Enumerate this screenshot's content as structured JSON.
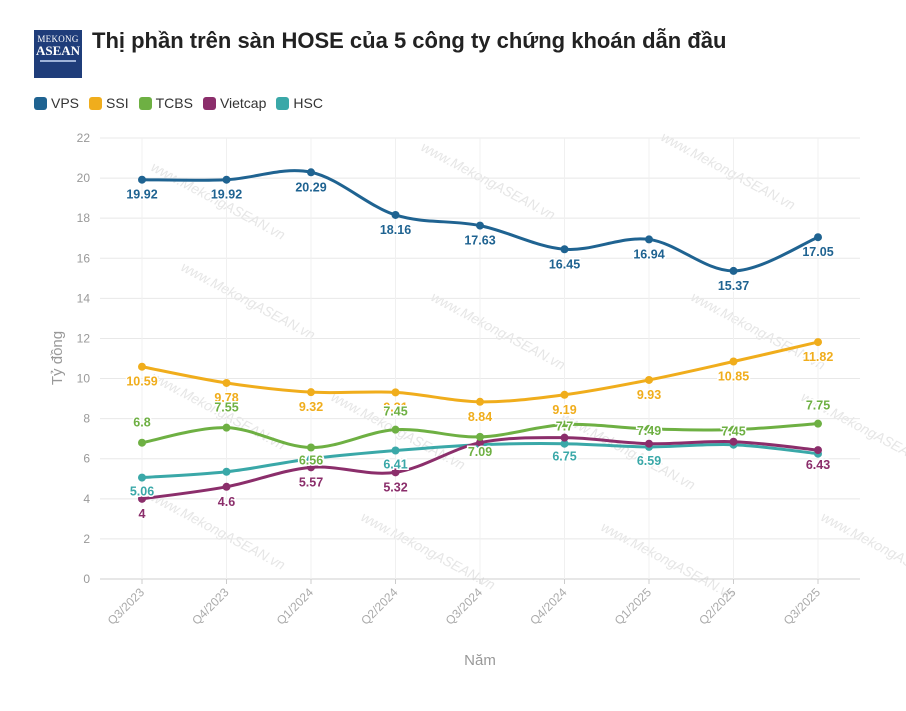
{
  "logo": {
    "line1": "MEKONG",
    "line2": "ASEAN"
  },
  "chart_data": {
    "type": "line",
    "title": "Thị phần trên sàn HOSE của 5 công ty chứng khoán dẫn đầu",
    "xlabel": "Năm",
    "ylabel": "Tỷ đồng",
    "ylim": [
      0,
      22
    ],
    "yticks": [
      0,
      2,
      4,
      6,
      8,
      10,
      12,
      14,
      16,
      18,
      20,
      22
    ],
    "categories": [
      "Q3/2023",
      "Q4/2023",
      "Q1/2024",
      "Q2/2024",
      "Q3/2024",
      "Q4/2024",
      "Q1/2025",
      "Q2/2025",
      "Q3/2025"
    ],
    "grid": true,
    "legend_position": "top-left",
    "watermark": "www.MekongASEAN.vn",
    "series": [
      {
        "name": "VPS",
        "color": "#1f6391",
        "values": [
          19.92,
          19.92,
          20.29,
          18.16,
          17.63,
          16.45,
          16.94,
          15.37,
          17.05
        ]
      },
      {
        "name": "SSI",
        "color": "#f0ad1c",
        "values": [
          10.59,
          9.78,
          9.32,
          9.31,
          8.84,
          9.19,
          9.93,
          10.85,
          11.82
        ]
      },
      {
        "name": "TCBS",
        "color": "#6eb043",
        "values": [
          6.8,
          7.55,
          6.56,
          7.45,
          7.09,
          7.7,
          7.49,
          7.45,
          7.75
        ]
      },
      {
        "name": "Vietcap",
        "color": "#8b2e6b",
        "values": [
          4,
          4.6,
          5.57,
          5.32,
          6.8,
          7.05,
          6.75,
          6.85,
          6.43
        ]
      },
      {
        "name": "HSC",
        "color": "#3aa8a8",
        "values": [
          5.06,
          5.35,
          6.0,
          6.41,
          6.7,
          6.75,
          6.59,
          6.7,
          6.25
        ]
      }
    ],
    "data_labels": {
      "VPS": [
        "19.92",
        "19.92",
        "20.29",
        "18.16",
        "17.63",
        "16.45",
        "16.94",
        "15.37",
        "17.05"
      ],
      "SSI": [
        "10.59",
        "9.78",
        "9.32",
        "9.31",
        "8.84",
        "9.19",
        "9.93",
        "10.85",
        "11.82"
      ],
      "TCBS": [
        "6.8",
        "7.55",
        "6.56",
        "7.45",
        "7.09",
        "7.7",
        "7.49",
        "7.45",
        "7.75"
      ],
      "Vietcap": [
        "4",
        "4.6",
        "5.57",
        "5.32",
        "",
        "",
        "",
        "",
        "6.43"
      ],
      "HSC": [
        "5.06",
        "",
        "",
        "6.41",
        "",
        "6.75",
        "6.59",
        "",
        ""
      ]
    }
  }
}
